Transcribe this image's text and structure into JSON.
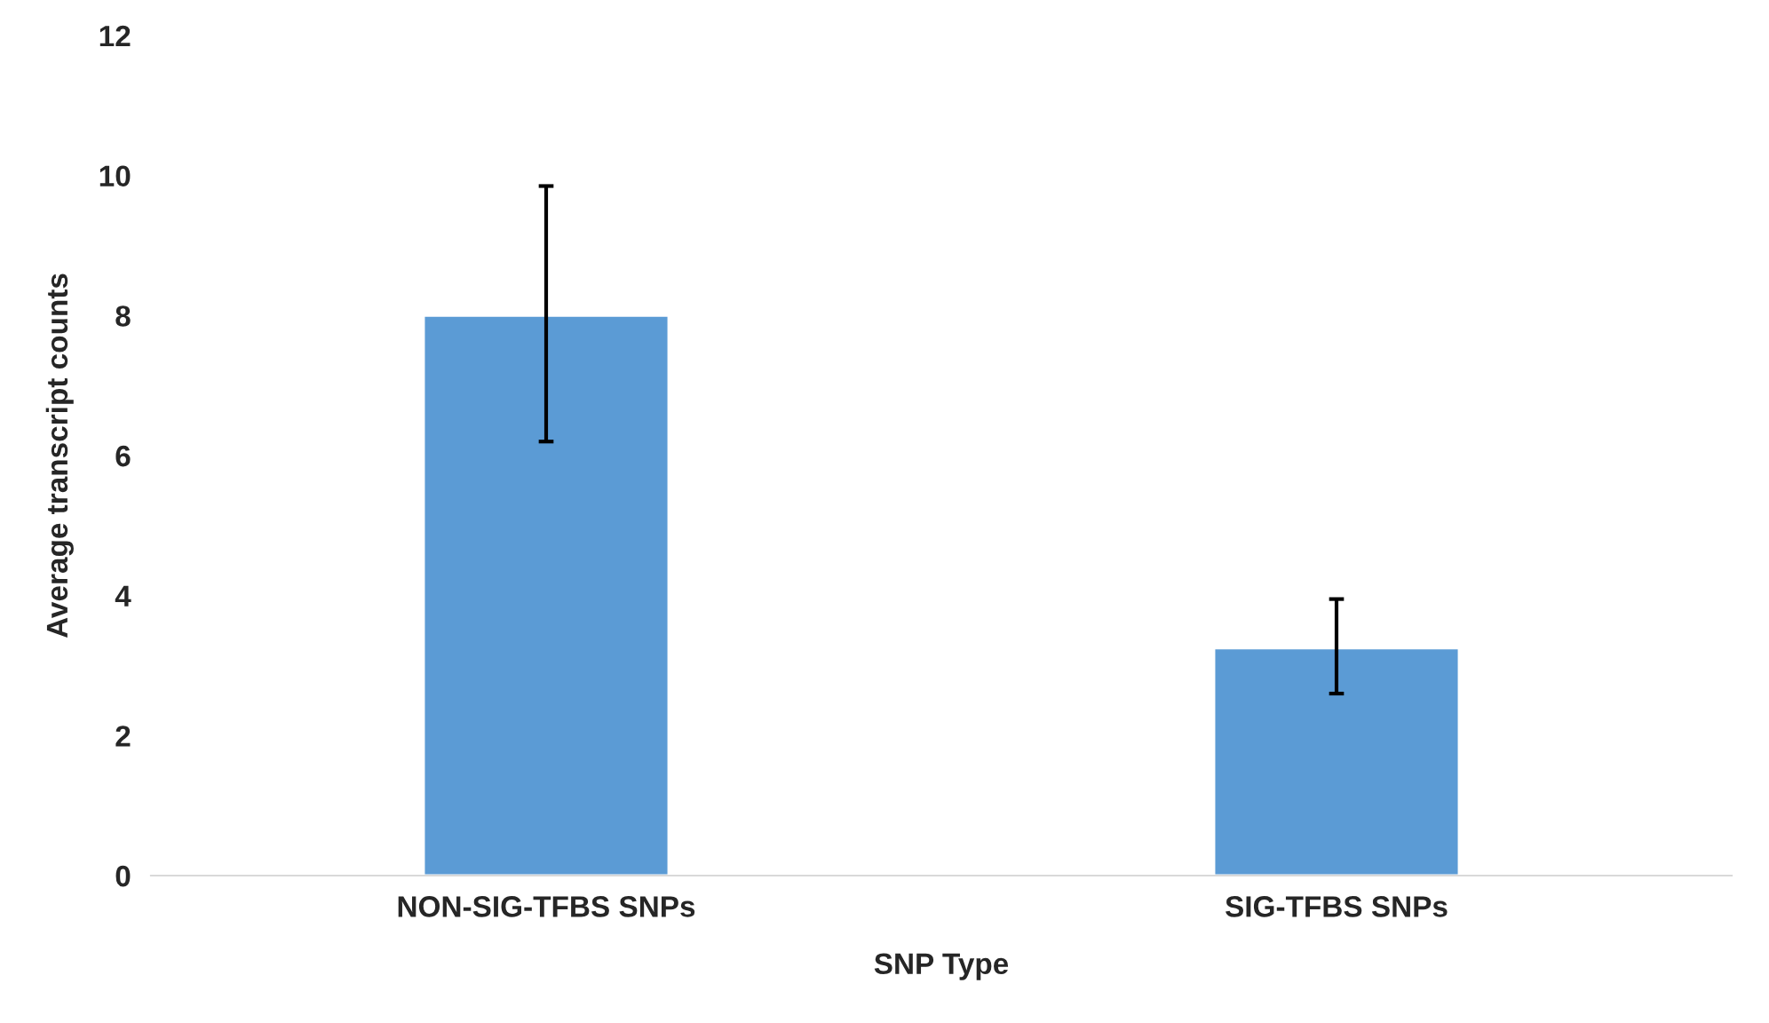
{
  "chart_data": {
    "type": "bar",
    "xlabel": "SNP Type",
    "ylabel": "Average transcript counts",
    "categories": [
      "NON-SIG-TFBS SNPs",
      "SIG-TFBS SNPs"
    ],
    "values": [
      8.0,
      3.25
    ],
    "errors": [
      [
        6.2,
        9.85
      ],
      [
        2.6,
        3.95
      ]
    ],
    "color": "#5b9bd5",
    "ylim": [
      0,
      12
    ],
    "yticks": [
      0,
      2,
      4,
      6,
      8,
      10,
      12
    ],
    "grid": false,
    "legend": false
  }
}
